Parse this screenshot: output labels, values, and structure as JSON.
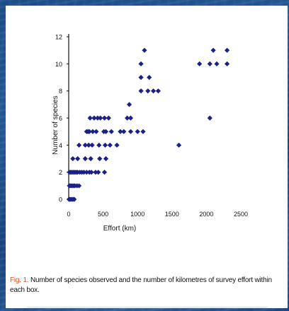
{
  "caption": {
    "label": "Fig. 1.",
    "text": "Number of species observed and the number of kilometres of survey effort within each box."
  },
  "colors": {
    "points": "#1b1f8a",
    "caption_label": "#e84a17",
    "background": "#1f528f"
  },
  "chart_data": {
    "type": "scatter",
    "xlabel": "Effort (km)",
    "ylabel": "Number of species",
    "xlim": [
      0,
      2500
    ],
    "ylim": [
      0,
      12
    ],
    "x_ticks": [
      "0",
      "500",
      "1000",
      "1500",
      "2000",
      "2500"
    ],
    "y_ticks": [
      "0",
      "2",
      "4",
      "6",
      "8",
      "10",
      "12"
    ],
    "grid": false,
    "legend": "none",
    "series": [
      {
        "points": [
          [
            5,
            0
          ],
          [
            20,
            0
          ],
          [
            40,
            0
          ],
          [
            60,
            0
          ],
          [
            80,
            0
          ],
          [
            10,
            1
          ],
          [
            30,
            1
          ],
          [
            50,
            1
          ],
          [
            70,
            1
          ],
          [
            90,
            1
          ],
          [
            120,
            1
          ],
          [
            150,
            1
          ],
          [
            10,
            2
          ],
          [
            30,
            2
          ],
          [
            50,
            2
          ],
          [
            70,
            2
          ],
          [
            90,
            2
          ],
          [
            110,
            2
          ],
          [
            130,
            2
          ],
          [
            160,
            2
          ],
          [
            190,
            2
          ],
          [
            220,
            2
          ],
          [
            260,
            2
          ],
          [
            300,
            2
          ],
          [
            330,
            2
          ],
          [
            390,
            2
          ],
          [
            430,
            2
          ],
          [
            520,
            2
          ],
          [
            60,
            3
          ],
          [
            130,
            3
          ],
          [
            240,
            3
          ],
          [
            320,
            3
          ],
          [
            450,
            3
          ],
          [
            540,
            3
          ],
          [
            150,
            4
          ],
          [
            240,
            4
          ],
          [
            290,
            4
          ],
          [
            340,
            4
          ],
          [
            440,
            4
          ],
          [
            530,
            4
          ],
          [
            600,
            4
          ],
          [
            700,
            4
          ],
          [
            260,
            5
          ],
          [
            280,
            5
          ],
          [
            300,
            5
          ],
          [
            350,
            5
          ],
          [
            400,
            5
          ],
          [
            510,
            5
          ],
          [
            540,
            5
          ],
          [
            620,
            5
          ],
          [
            750,
            5
          ],
          [
            800,
            5
          ],
          [
            900,
            5
          ],
          [
            1000,
            5
          ],
          [
            1080,
            5
          ],
          [
            310,
            6
          ],
          [
            370,
            6
          ],
          [
            420,
            6
          ],
          [
            460,
            6
          ],
          [
            520,
            6
          ],
          [
            580,
            6
          ],
          [
            850,
            6
          ],
          [
            900,
            6
          ],
          [
            880,
            7
          ],
          [
            1050,
            8
          ],
          [
            1150,
            8
          ],
          [
            1230,
            8
          ],
          [
            1300,
            8
          ],
          [
            1050,
            9
          ],
          [
            1170,
            9
          ],
          [
            1100,
            11
          ],
          [
            2100,
            11
          ],
          [
            2300,
            11
          ],
          [
            1050,
            10
          ],
          [
            1600,
            4
          ],
          [
            2050,
            6
          ],
          [
            1900,
            10
          ],
          [
            2050,
            10
          ],
          [
            2150,
            10
          ],
          [
            2300,
            10
          ]
        ]
      }
    ]
  }
}
